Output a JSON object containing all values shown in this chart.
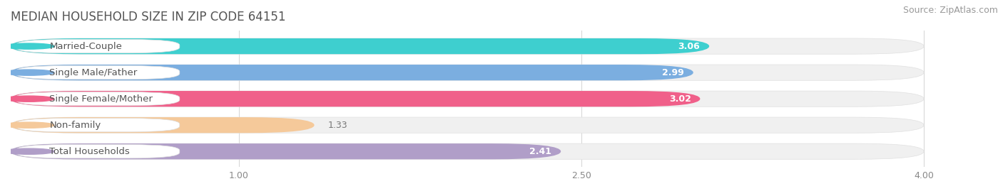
{
  "title": "MEDIAN HOUSEHOLD SIZE IN ZIP CODE 64151",
  "source": "Source: ZipAtlas.com",
  "categories": [
    "Married-Couple",
    "Single Male/Father",
    "Single Female/Mother",
    "Non-family",
    "Total Households"
  ],
  "values": [
    3.06,
    2.99,
    3.02,
    1.33,
    2.41
  ],
  "bar_colors": [
    "#3ecfcf",
    "#7baee0",
    "#f0608a",
    "#f5c99a",
    "#b09ec8"
  ],
  "xlim": [
    0,
    4.3
  ],
  "xdata_max": 4.0,
  "xticks": [
    1.0,
    2.5,
    4.0
  ],
  "xticklabels": [
    "1.00",
    "2.50",
    "4.00"
  ],
  "title_fontsize": 12,
  "source_fontsize": 9,
  "label_fontsize": 9.5,
  "value_fontsize": 9,
  "background_color": "#ffffff",
  "bar_bg_color": "#f0f0f0",
  "label_box_color": "#ffffff",
  "bar_height": 0.6,
  "bar_gap": 0.4
}
